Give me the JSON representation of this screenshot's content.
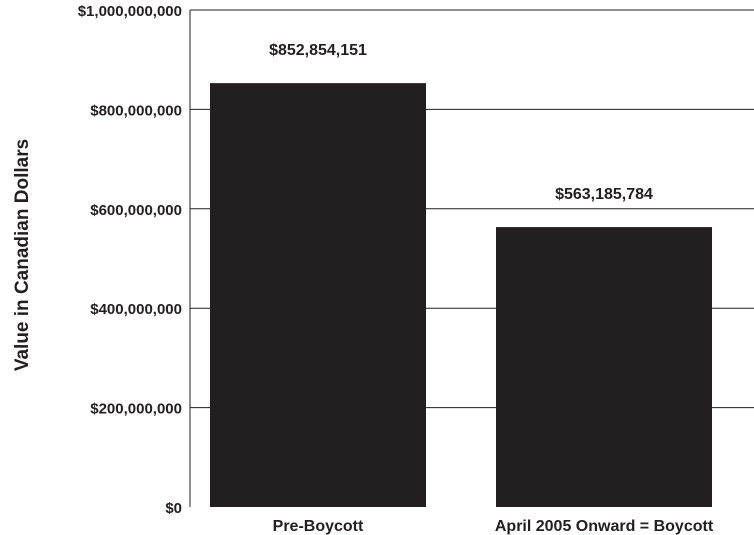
{
  "chart_data": {
    "type": "bar",
    "title": "",
    "xlabel": "",
    "ylabel": "Value in Canadian Dollars",
    "categories": [
      "Pre-Boycott",
      "April 2005 Onward = Boycott"
    ],
    "values": [
      852854151,
      563185784
    ],
    "value_labels": [
      "$852,854,151",
      "$563,185,784"
    ],
    "ylim": [
      0,
      1000000000
    ],
    "yticks": [
      0,
      200000000,
      400000000,
      600000000,
      800000000,
      1000000000
    ],
    "ytick_labels": [
      "$0",
      "$200,000,000",
      "$400,000,000",
      "$600,000,000",
      "$800,000,000",
      "$1,000,000,000"
    ],
    "grid": true,
    "bar_color": "#231f20",
    "grid_color": "#231f20"
  }
}
